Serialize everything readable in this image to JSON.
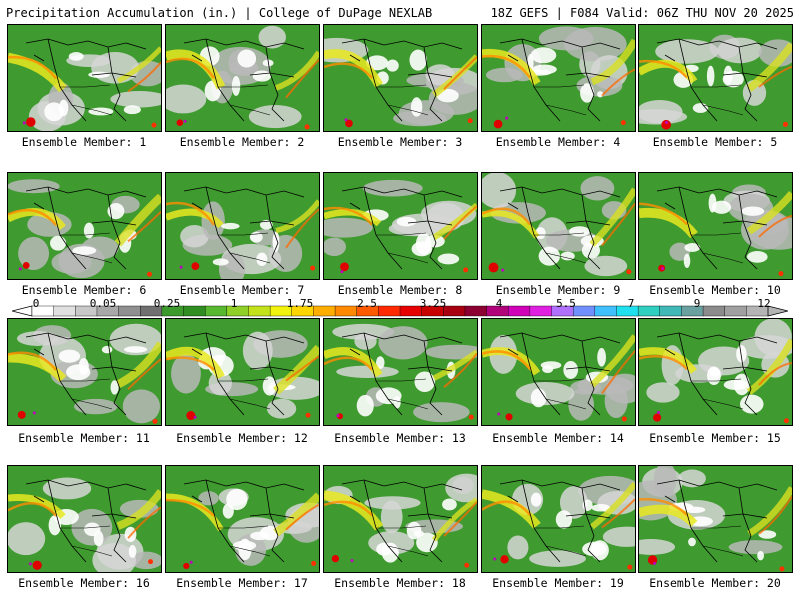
{
  "header": {
    "left_title": "Precipitation Accumulation (in.) | College of DuPage NEXLAB",
    "right_title": "18Z GEFS | F084 Valid: 06Z THU NOV 20 2025"
  },
  "panel_caption_prefix": "Ensemble Member: ",
  "members": [
    "Ensemble Member: 1",
    "Ensemble Member: 2",
    "Ensemble Member: 3",
    "Ensemble Member: 4",
    "Ensemble Member: 5",
    "Ensemble Member: 6",
    "Ensemble Member: 7",
    "Ensemble Member: 8",
    "Ensemble Member: 9",
    "Ensemble Member: 10",
    "Ensemble Member: 11",
    "Ensemble Member: 12",
    "Ensemble Member: 13",
    "Ensemble Member: 14",
    "Ensemble Member: 15",
    "Ensemble Member: 16",
    "Ensemble Member: 17",
    "Ensemble Member: 18",
    "Ensemble Member: 19",
    "Ensemble Member: 20"
  ],
  "colorbar": {
    "labels": [
      "0",
      "0.05",
      "0.25",
      "1",
      "1.75",
      "2.5",
      "3.25",
      "4",
      "5.5",
      "7",
      "9",
      "12"
    ],
    "colors": [
      "#ffffff",
      "#e0e0e0",
      "#c8c8c8",
      "#a8a8a8",
      "#909090",
      "#707070",
      "#3c9a2c",
      "#2f8d22",
      "#58b830",
      "#8fcf27",
      "#c4e21c",
      "#f2f20f",
      "#ffd500",
      "#ffae00",
      "#ff8a00",
      "#ff5a00",
      "#ff2a00",
      "#e60000",
      "#c80000",
      "#a80010",
      "#8b0030",
      "#b0007a",
      "#d000b8",
      "#e020e0",
      "#b070ff",
      "#7090ff",
      "#40c0ff",
      "#20e0f0",
      "#30d0c0",
      "#40b8b8",
      "#6aa0a0",
      "#8c8c8c",
      "#a0a0a0",
      "#b4b4b4"
    ]
  }
}
